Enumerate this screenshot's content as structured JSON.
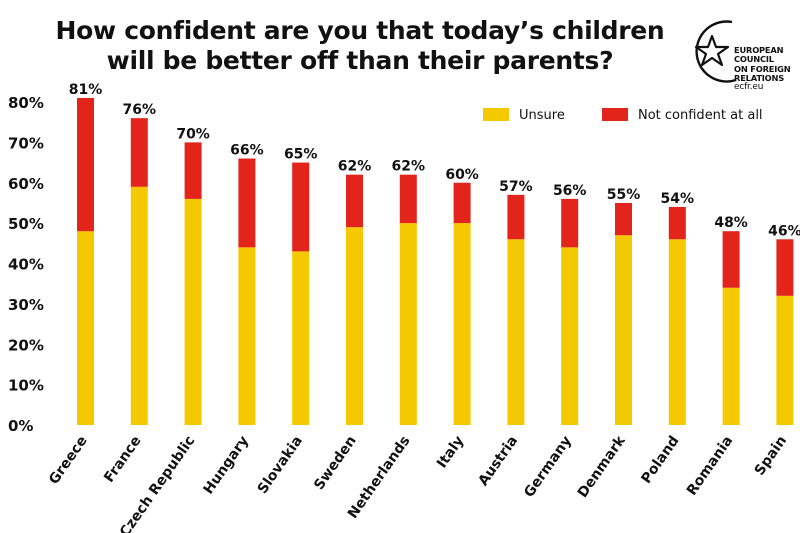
{
  "title": "How confident are you that today’s children will be better off than their parents?",
  "logo": {
    "lines": [
      "EUROPEAN",
      "COUNCIL",
      "ON FOREIGN",
      "RELATIONS"
    ],
    "url": "ecfr.eu",
    "icon": "star-circle-icon"
  },
  "colors": {
    "unsure": "#f5c900",
    "not_confident": "#e3241b",
    "text": "#111111"
  },
  "chart_data": {
    "type": "bar",
    "stacked": true,
    "title": "How confident are you that today’s children will be better off than their parents?",
    "categories": [
      "Greece",
      "France",
      "Czech Republic",
      "Hungary",
      "Slovakia",
      "Sweden",
      "Netherlands",
      "Italy",
      "Austria",
      "Germany",
      "Denmark",
      "Poland",
      "Romania",
      "Spain"
    ],
    "series": [
      {
        "name": "Unsure",
        "values": [
          48,
          59,
          56,
          44,
          43,
          49,
          50,
          50,
          46,
          44,
          47,
          46,
          34,
          32
        ]
      },
      {
        "name": "Not confident at all",
        "values": [
          33,
          17,
          14,
          22,
          22,
          13,
          12,
          10,
          11,
          12,
          8,
          8,
          14,
          14
        ]
      }
    ],
    "totals": [
      "81%",
      "76%",
      "70%",
      "66%",
      "65%",
      "62%",
      "62%",
      "60%",
      "57%",
      "56%",
      "55%",
      "54%",
      "48%",
      "46%"
    ],
    "yticks": [
      "0%",
      "10%",
      "20%",
      "30%",
      "40%",
      "50%",
      "60%",
      "70%",
      "80%"
    ],
    "ylim": [
      0,
      80
    ],
    "legend_position": "top-right"
  }
}
